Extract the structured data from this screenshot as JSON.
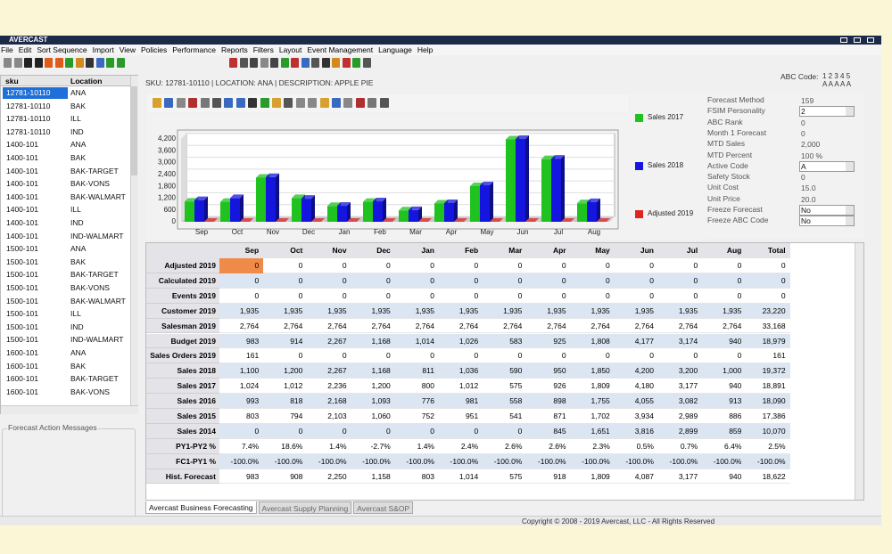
{
  "window": {
    "title": "AVERCAST"
  },
  "menu": [
    "File",
    "Edit",
    "Sort Sequence",
    "Import",
    "View",
    "Policies",
    "Performance",
    "Reports",
    "Filters",
    "Layout",
    "Event Management",
    "Language",
    "Help"
  ],
  "sku_list": {
    "columns": [
      "sku",
      "Location"
    ],
    "rows": [
      [
        "12781-10110",
        "ANA"
      ],
      [
        "12781-10110",
        "BAK"
      ],
      [
        "12781-10110",
        "ILL"
      ],
      [
        "12781-10110",
        "IND"
      ],
      [
        "1400-101",
        "ANA"
      ],
      [
        "1400-101",
        "BAK"
      ],
      [
        "1400-101",
        "BAK-TARGET"
      ],
      [
        "1400-101",
        "BAK-VONS"
      ],
      [
        "1400-101",
        "BAK-WALMART"
      ],
      [
        "1400-101",
        "ILL"
      ],
      [
        "1400-101",
        "IND"
      ],
      [
        "1400-101",
        "IND-WALMART"
      ],
      [
        "1500-101",
        "ANA"
      ],
      [
        "1500-101",
        "BAK"
      ],
      [
        "1500-101",
        "BAK-TARGET"
      ],
      [
        "1500-101",
        "BAK-VONS"
      ],
      [
        "1500-101",
        "BAK-WALMART"
      ],
      [
        "1500-101",
        "ILL"
      ],
      [
        "1500-101",
        "IND"
      ],
      [
        "1500-101",
        "IND-WALMART"
      ],
      [
        "1600-101",
        "ANA"
      ],
      [
        "1600-101",
        "BAK"
      ],
      [
        "1600-101",
        "BAK-TARGET"
      ],
      [
        "1600-101",
        "BAK-VONS"
      ]
    ]
  },
  "messages_title": "Forecast Action Messages",
  "header": {
    "sku_line": "SKU: 12781-10110  |  LOCATION: ANA  |  DESCRIPTION: APPLE PIE",
    "abc_label": "ABC Code:",
    "abc_codes": "1 2 3 4 5",
    "abc_letters": "A A A A A"
  },
  "chart_data": {
    "type": "bar",
    "categories": [
      "Sep",
      "Oct",
      "Nov",
      "Dec",
      "Jan",
      "Feb",
      "Mar",
      "Apr",
      "May",
      "Jun",
      "Jul",
      "Aug"
    ],
    "series": [
      {
        "name": "Sales 2017",
        "color": "#1fc21f",
        "values": [
          1024,
          1012,
          2236,
          1200,
          800,
          1012,
          575,
          926,
          1809,
          4180,
          3177,
          940
        ]
      },
      {
        "name": "Sales 2018",
        "color": "#1515e0",
        "values": [
          1100,
          1200,
          2267,
          1168,
          811,
          1036,
          590,
          950,
          1850,
          4200,
          3200,
          1000
        ]
      },
      {
        "name": "Adjusted 2019",
        "color": "#e02222",
        "values": [
          0,
          0,
          0,
          0,
          0,
          0,
          0,
          0,
          0,
          0,
          0,
          0
        ]
      }
    ],
    "ylim": [
      0,
      4200
    ],
    "yticks": [
      0,
      600,
      {
        "value": 1200,
        "label": "1,200"
      },
      {
        "value": 1800,
        "label": "1,800"
      },
      {
        "value": 2400,
        "label": "2,400"
      },
      {
        "value": 3000,
        "label": "3,000"
      },
      {
        "value": 3600,
        "label": "3,600"
      },
      {
        "value": 4200,
        "label": "4,200"
      }
    ],
    "grid": true
  },
  "info": [
    {
      "label": "Forecast Method",
      "value": "159"
    },
    {
      "label": "FSIM Personality",
      "value": "2"
    },
    {
      "label": "ABC Rank",
      "value": "0"
    },
    {
      "label": "Month 1 Forecast",
      "value": "0"
    },
    {
      "label": "MTD Sales",
      "value": "2,000"
    },
    {
      "label": "MTD Percent",
      "value": "100 %"
    },
    {
      "label": "Active Code",
      "value": "A"
    },
    {
      "label": "Safety Stock",
      "value": "0"
    },
    {
      "label": "Unit Cost",
      "value": "15.0"
    },
    {
      "label": "Unit Price",
      "value": "20.0"
    },
    {
      "label": "Freeze Forecast",
      "value": "No"
    },
    {
      "label": "Freeze ABC Code",
      "value": "No"
    }
  ],
  "table": {
    "columns": [
      "Sep",
      "Oct",
      "Nov",
      "Dec",
      "Jan",
      "Feb",
      "Mar",
      "Apr",
      "May",
      "Jun",
      "Jul",
      "Aug",
      "Total"
    ],
    "rows": [
      {
        "label": "Adjusted 2019",
        "cells": [
          "0",
          "0",
          "0",
          "0",
          "0",
          "0",
          "0",
          "0",
          "0",
          "0",
          "0",
          "0",
          "0"
        ]
      },
      {
        "label": "Calculated 2019",
        "cells": [
          "0",
          "0",
          "0",
          "0",
          "0",
          "0",
          "0",
          "0",
          "0",
          "0",
          "0",
          "0",
          "0"
        ]
      },
      {
        "label": "Events 2019",
        "cells": [
          "0",
          "0",
          "0",
          "0",
          "0",
          "0",
          "0",
          "0",
          "0",
          "0",
          "0",
          "0",
          "0"
        ]
      },
      {
        "label": "Customer 2019",
        "cells": [
          "1,935",
          "1,935",
          "1,935",
          "1,935",
          "1,935",
          "1,935",
          "1,935",
          "1,935",
          "1,935",
          "1,935",
          "1,935",
          "1,935",
          "23,220"
        ]
      },
      {
        "label": "Salesman 2019",
        "cells": [
          "2,764",
          "2,764",
          "2,764",
          "2,764",
          "2,764",
          "2,764",
          "2,764",
          "2,764",
          "2,764",
          "2,764",
          "2,764",
          "2,764",
          "33,168"
        ]
      },
      {
        "label": "Budget 2019",
        "cells": [
          "983",
          "914",
          "2,267",
          "1,168",
          "1,014",
          "1,026",
          "583",
          "925",
          "1,808",
          "4,177",
          "3,174",
          "940",
          "18,979"
        ]
      },
      {
        "label": "Sales Orders 2019",
        "cells": [
          "161",
          "0",
          "0",
          "0",
          "0",
          "0",
          "0",
          "0",
          "0",
          "0",
          "0",
          "0",
          "161"
        ]
      },
      {
        "label": "Sales 2018",
        "cells": [
          "1,100",
          "1,200",
          "2,267",
          "1,168",
          "811",
          "1,036",
          "590",
          "950",
          "1,850",
          "4,200",
          "3,200",
          "1,000",
          "19,372"
        ]
      },
      {
        "label": "Sales 2017",
        "cells": [
          "1,024",
          "1,012",
          "2,236",
          "1,200",
          "800",
          "1,012",
          "575",
          "926",
          "1,809",
          "4,180",
          "3,177",
          "940",
          "18,891"
        ]
      },
      {
        "label": "Sales 2016",
        "cells": [
          "993",
          "818",
          "2,168",
          "1,093",
          "776",
          "981",
          "558",
          "898",
          "1,755",
          "4,055",
          "3,082",
          "913",
          "18,090"
        ]
      },
      {
        "label": "Sales 2015",
        "cells": [
          "803",
          "794",
          "2,103",
          "1,060",
          "752",
          "951",
          "541",
          "871",
          "1,702",
          "3,934",
          "2,989",
          "886",
          "17,386"
        ]
      },
      {
        "label": "Sales 2014",
        "cells": [
          "0",
          "0",
          "0",
          "0",
          "0",
          "0",
          "0",
          "845",
          "1,651",
          "3,816",
          "2,899",
          "859",
          "10,070"
        ]
      },
      {
        "label": "PY1-PY2 %",
        "cells": [
          "7.4%",
          "18.6%",
          "1.4%",
          "-2.7%",
          "1.4%",
          "2.4%",
          "2.6%",
          "2.6%",
          "2.3%",
          "0.5%",
          "0.7%",
          "6.4%",
          "2.5%"
        ]
      },
      {
        "label": "FC1-PY1 %",
        "cells": [
          "-100.0%",
          "-100.0%",
          "-100.0%",
          "-100.0%",
          "-100.0%",
          "-100.0%",
          "-100.0%",
          "-100.0%",
          "-100.0%",
          "-100.0%",
          "-100.0%",
          "-100.0%",
          "-100.0%"
        ]
      },
      {
        "label": "Hist. Forecast",
        "cells": [
          "983",
          "908",
          "2,250",
          "1,158",
          "803",
          "1,014",
          "575",
          "918",
          "1,809",
          "4,087",
          "3,177",
          "940",
          "18,622"
        ]
      }
    ]
  },
  "tabs": [
    "Avercast Business Forecasting",
    "Avercast Supply Planning",
    "Avercast S&OP"
  ],
  "footer": "Copyright © 2008 - 2019 Avercast, LLC - All Rights Reserved"
}
